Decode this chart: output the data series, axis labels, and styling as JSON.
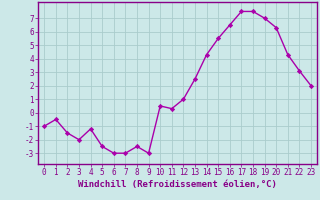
{
  "x": [
    0,
    1,
    2,
    3,
    4,
    5,
    6,
    7,
    8,
    9,
    10,
    11,
    12,
    13,
    14,
    15,
    16,
    17,
    18,
    19,
    20,
    21,
    22,
    23
  ],
  "y": [
    -1.0,
    -0.5,
    -1.5,
    -2.0,
    -1.2,
    -2.5,
    -3.0,
    -3.0,
    -2.5,
    -3.0,
    0.5,
    0.3,
    1.0,
    2.5,
    4.3,
    5.5,
    6.5,
    7.5,
    7.5,
    7.0,
    6.3,
    4.3,
    3.1,
    2.0
  ],
  "line_color": "#aa00aa",
  "marker": "D",
  "marker_size": 2.2,
  "bg_color": "#cce8e8",
  "grid_color": "#aacccc",
  "xlabel": "Windchill (Refroidissement éolien,°C)",
  "ylim": [
    -3.8,
    8.2
  ],
  "xlim": [
    -0.5,
    23.5
  ],
  "yticks": [
    -3,
    -2,
    -1,
    0,
    1,
    2,
    3,
    4,
    5,
    6,
    7
  ],
  "xticks": [
    0,
    1,
    2,
    3,
    4,
    5,
    6,
    7,
    8,
    9,
    10,
    11,
    12,
    13,
    14,
    15,
    16,
    17,
    18,
    19,
    20,
    21,
    22,
    23
  ],
  "tick_color": "#880088",
  "label_color": "#880088",
  "spine_color": "#880088",
  "xlabel_fontsize": 6.5,
  "tick_fontsize": 5.5,
  "linewidth": 1.0
}
